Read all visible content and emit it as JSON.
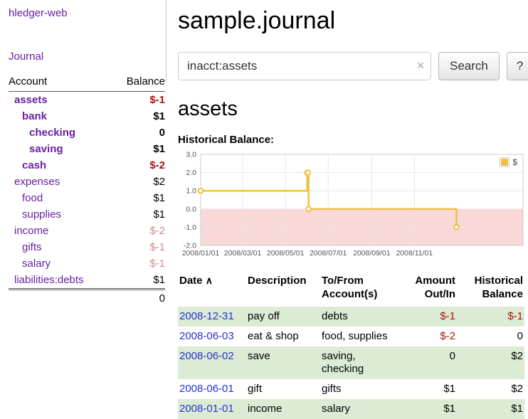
{
  "app": {
    "title": "hledger-web"
  },
  "colors": {
    "negative": "#aa1111",
    "negative_faded": "#d08b8b",
    "purple_link": "#6a1fa2",
    "blue_link": "#2533d0",
    "green_row": "#dcebd4",
    "series_yellow": "#edc240"
  },
  "sidebar": {
    "journal_link": "Journal",
    "table": {
      "account_header": "Account",
      "balance_header": "Balance",
      "rows": [
        {
          "account": "assets",
          "balance": "$-1",
          "depth": 0,
          "strong": true,
          "sign": "neg"
        },
        {
          "account": "bank",
          "balance": "$1",
          "depth": 1,
          "strong": true,
          "sign": "pos"
        },
        {
          "account": "checking",
          "balance": "0",
          "depth": 2,
          "strong": true,
          "sign": "zero"
        },
        {
          "account": "saving",
          "balance": "$1",
          "depth": 2,
          "strong": true,
          "sign": "pos"
        },
        {
          "account": "cash",
          "balance": "$-2",
          "depth": 1,
          "strong": true,
          "sign": "neg"
        },
        {
          "account": "expenses",
          "balance": "$2",
          "depth": 0,
          "strong": false,
          "sign": "pos"
        },
        {
          "account": "food",
          "balance": "$1",
          "depth": 1,
          "strong": false,
          "sign": "pos"
        },
        {
          "account": "supplies",
          "balance": "$1",
          "depth": 1,
          "strong": false,
          "sign": "pos"
        },
        {
          "account": "income",
          "balance": "$-2",
          "depth": 0,
          "strong": false,
          "sign": "neg-faded"
        },
        {
          "account": "gifts",
          "balance": "$-1",
          "depth": 1,
          "strong": false,
          "sign": "neg-faded"
        },
        {
          "account": "salary",
          "balance": "$-1",
          "depth": 1,
          "strong": false,
          "sign": "neg-faded"
        },
        {
          "account": "liabilities:debts",
          "balance": "$1",
          "depth": 0,
          "strong": false,
          "sign": "pos"
        }
      ],
      "total": "0"
    }
  },
  "header": {
    "title": "sample.journal"
  },
  "search": {
    "value": "inacct:assets",
    "clear_icon": "×",
    "button_label": "Search",
    "help_label": "?"
  },
  "account_page": {
    "heading": "assets"
  },
  "chart_data": {
    "type": "line",
    "step": true,
    "title": "Historical Balance:",
    "xlabel": "",
    "ylabel": "",
    "x_unit": "days since 2008-01-01",
    "xlim": [
      0,
      460
    ],
    "ylim": [
      -2,
      3
    ],
    "yticks": [
      3,
      2,
      1,
      0,
      -1,
      -2
    ],
    "xticks": [
      {
        "pos": 0,
        "label": "2008/01/01"
      },
      {
        "pos": 60,
        "label": "2008/03/01"
      },
      {
        "pos": 121,
        "label": "2008/05/01"
      },
      {
        "pos": 182,
        "label": "2008/07/01"
      },
      {
        "pos": 244,
        "label": "2008/09/01"
      },
      {
        "pos": 305,
        "label": "2008/11/01"
      }
    ],
    "series": [
      {
        "name": "$",
        "color": "#edc240",
        "points": [
          [
            0,
            1
          ],
          [
            152,
            2
          ],
          [
            153,
            2
          ],
          [
            154,
            0
          ],
          [
            365,
            -1
          ]
        ]
      }
    ],
    "negative_region_color": "#f9d8d8",
    "grid": true,
    "legend": {
      "position": "top-right",
      "label": "$",
      "swatch_color": "#edc240"
    }
  },
  "register": {
    "headers": {
      "date": "Date",
      "sort_indicator": "∧",
      "description": "Description",
      "account": "To/From Account(s)",
      "amount": "Amount Out/In",
      "balance": "Historical Balance"
    },
    "rows": [
      {
        "date": "2008-12-31",
        "description": "pay off",
        "accounts": "debts",
        "amount": "$-1",
        "amount_sign": "neg",
        "balance": "$-1",
        "balance_sign": "neg"
      },
      {
        "date": "2008-06-03",
        "description": "eat & shop",
        "accounts": "food, supplies",
        "amount": "$-2",
        "amount_sign": "neg",
        "balance": "0",
        "balance_sign": "zero"
      },
      {
        "date": "2008-06-02",
        "description": "save",
        "accounts": "saving, checking",
        "amount": "0",
        "amount_sign": "zero",
        "balance": "$2",
        "balance_sign": "pos"
      },
      {
        "date": "2008-06-01",
        "description": "gift",
        "accounts": "gifts",
        "amount": "$1",
        "amount_sign": "pos",
        "balance": "$2",
        "balance_sign": "pos"
      },
      {
        "date": "2008-01-01",
        "description": "income",
        "accounts": "salary",
        "amount": "$1",
        "amount_sign": "pos",
        "balance": "$1",
        "balance_sign": "pos"
      }
    ]
  }
}
